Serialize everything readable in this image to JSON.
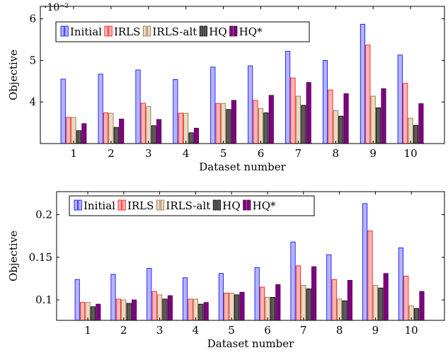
{
  "chart_data": [
    {
      "type": "bar",
      "categories": [
        "1",
        "2",
        "3",
        "4",
        "5",
        "6",
        "7",
        "8",
        "9",
        "10"
      ],
      "xlabel": "Dataset number",
      "ylabel": "Objective",
      "scale_note": "·10⁻²",
      "ylim": [
        3.0,
        6.3
      ],
      "yticks": [
        4,
        5,
        6
      ],
      "ytick_labels": [
        "4",
        "5",
        "6"
      ],
      "legend_position": "top-left",
      "series": [
        {
          "name": "Initial",
          "values": [
            4.55,
            4.67,
            4.77,
            4.54,
            4.84,
            4.87,
            5.22,
            5.0,
            5.87,
            5.13
          ]
        },
        {
          "name": "IRLS",
          "values": [
            3.63,
            3.74,
            3.97,
            3.73,
            3.96,
            4.04,
            4.58,
            4.29,
            5.37,
            4.45
          ]
        },
        {
          "name": "IRLS-alt",
          "values": [
            3.63,
            3.73,
            3.89,
            3.73,
            3.96,
            3.84,
            4.14,
            3.79,
            4.14,
            3.61
          ]
        },
        {
          "name": "HQ",
          "values": [
            3.31,
            3.39,
            3.43,
            3.26,
            3.82,
            3.74,
            3.92,
            3.66,
            3.86,
            3.44
          ]
        },
        {
          "name": "HQ*",
          "values": [
            3.48,
            3.59,
            3.58,
            3.37,
            4.04,
            4.16,
            4.47,
            4.2,
            4.32,
            3.96
          ]
        }
      ]
    },
    {
      "type": "bar",
      "categories": [
        "1",
        "2",
        "3",
        "4",
        "5",
        "6",
        "7",
        "8",
        "9",
        "10"
      ],
      "xlabel": "Dataset number",
      "ylabel": "Objective",
      "ylim": [
        0.076,
        0.227
      ],
      "yticks": [
        0.1,
        0.15,
        0.2
      ],
      "ytick_labels": [
        "0.1",
        "0.15",
        "0.2"
      ],
      "legend_position": "top-left",
      "series": [
        {
          "name": "Initial",
          "values": [
            0.124,
            0.13,
            0.137,
            0.126,
            0.131,
            0.138,
            0.168,
            0.153,
            0.213,
            0.161
          ]
        },
        {
          "name": "IRLS",
          "values": [
            0.097,
            0.101,
            0.11,
            0.101,
            0.108,
            0.115,
            0.14,
            0.124,
            0.181,
            0.128
          ]
        },
        {
          "name": "IRLS-alt",
          "values": [
            0.097,
            0.1,
            0.106,
            0.101,
            0.108,
            0.103,
            0.117,
            0.101,
            0.117,
            0.093
          ]
        },
        {
          "name": "HQ",
          "values": [
            0.092,
            0.096,
            0.101,
            0.095,
            0.106,
            0.103,
            0.113,
            0.099,
            0.114,
            0.09
          ]
        },
        {
          "name": "HQ*",
          "values": [
            0.095,
            0.1,
            0.105,
            0.097,
            0.109,
            0.118,
            0.139,
            0.123,
            0.131,
            0.11
          ]
        }
      ]
    }
  ],
  "colors": {
    "series_fill": [
      "#b4b4ff",
      "#ffb4b4",
      "#ecd9c2",
      "#5a5a5a",
      "#800080"
    ],
    "series_stroke": [
      "#0000ff",
      "#ff0000",
      "#8a6a3a",
      "#000000",
      "#4a004a"
    ]
  }
}
